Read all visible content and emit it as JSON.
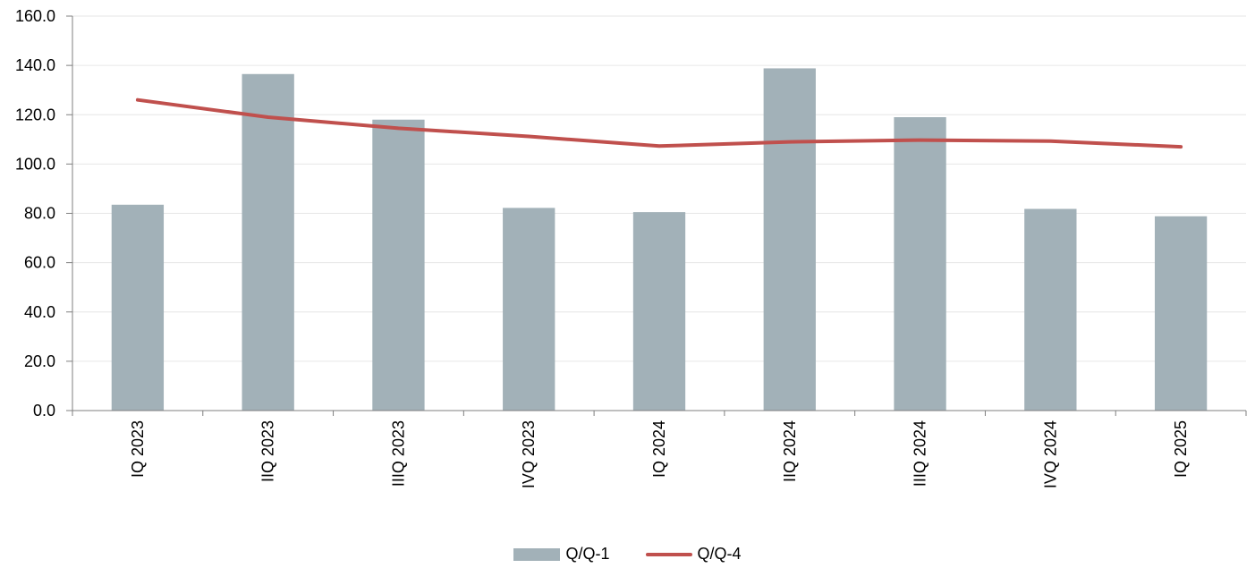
{
  "chart_data": {
    "type": "bar",
    "categories": [
      "IQ 2023",
      "IIQ 2023",
      "IIIQ 2023",
      "IVQ 2023",
      "IQ 2024",
      "IIQ 2024",
      "IIIQ 2024",
      "IVQ 2024",
      "IQ 2025"
    ],
    "series": [
      {
        "name": "Q/Q-1",
        "type": "bar",
        "color": "#a2b1b8",
        "values": [
          83.5,
          136.5,
          118.0,
          82.2,
          80.5,
          138.8,
          119.0,
          81.8,
          78.8
        ]
      },
      {
        "name": "Q/Q-4",
        "type": "line",
        "color": "#c0504d",
        "values": [
          126.0,
          119.0,
          114.5,
          111.2,
          107.3,
          109.0,
          109.7,
          109.3,
          107.0
        ]
      }
    ],
    "y_ticks": [
      "0.0",
      "20.0",
      "40.0",
      "60.0",
      "80.0",
      "100.0",
      "120.0",
      "140.0",
      "160.0"
    ],
    "ylim": [
      0,
      160
    ],
    "grid": true,
    "legend_position": "bottom-center",
    "title": "",
    "xlabel": "",
    "ylabel": ""
  }
}
